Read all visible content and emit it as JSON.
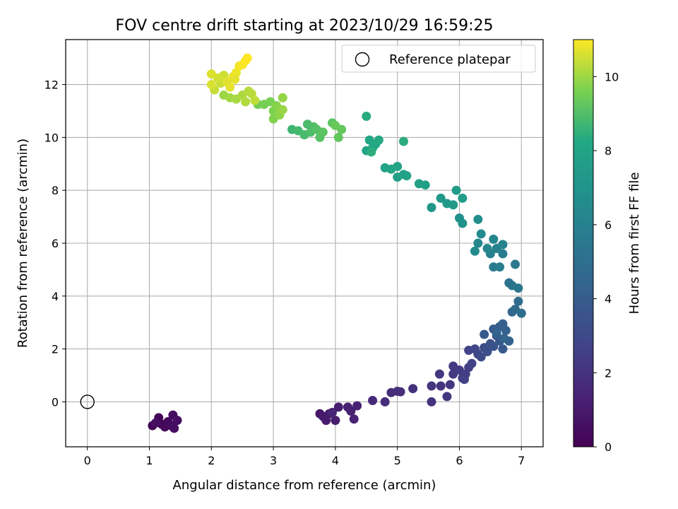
{
  "chart_data": {
    "type": "scatter",
    "title": "FOV centre drift starting at 2023/10/29 16:59:25",
    "xlabel": "Angular distance from reference (arcmin)",
    "ylabel": "Rotation from reference (arcmin)",
    "colorbar_label": "Hours from first FF file",
    "xlim": [
      -0.35,
      7.35
    ],
    "ylim": [
      -1.7,
      13.7
    ],
    "clim": [
      0,
      11
    ],
    "x_ticks": [
      0,
      1,
      2,
      3,
      4,
      5,
      6,
      7
    ],
    "y_ticks": [
      0,
      2,
      4,
      6,
      8,
      10,
      12
    ],
    "colorbar_ticks": [
      0,
      2,
      4,
      6,
      8,
      10
    ],
    "grid": true,
    "legend": {
      "placement": "top-right",
      "entries": [
        "Reference platepar"
      ]
    },
    "reference_point": {
      "x": 0,
      "y": 0,
      "marker": "open-circle"
    },
    "colormap": "viridis",
    "points": [
      {
        "x": 1.05,
        "y": -0.9,
        "t": 0.1
      },
      {
        "x": 1.15,
        "y": -0.6,
        "t": 0.2
      },
      {
        "x": 1.2,
        "y": -0.85,
        "t": 0.25
      },
      {
        "x": 1.25,
        "y": -0.95,
        "t": 0.3
      },
      {
        "x": 1.3,
        "y": -0.75,
        "t": 0.35
      },
      {
        "x": 1.35,
        "y": -0.9,
        "t": 0.4
      },
      {
        "x": 1.38,
        "y": -0.5,
        "t": 0.45
      },
      {
        "x": 1.4,
        "y": -1.0,
        "t": 0.5
      },
      {
        "x": 1.45,
        "y": -0.7,
        "t": 0.55
      },
      {
        "x": 1.1,
        "y": -0.8,
        "t": 0.6
      },
      {
        "x": 3.75,
        "y": -0.45,
        "t": 0.9
      },
      {
        "x": 3.8,
        "y": -0.55,
        "t": 0.95
      },
      {
        "x": 3.85,
        "y": -0.7,
        "t": 1.0
      },
      {
        "x": 3.9,
        "y": -0.45,
        "t": 1.05
      },
      {
        "x": 4.0,
        "y": -0.7,
        "t": 1.1
      },
      {
        "x": 4.05,
        "y": -0.2,
        "t": 1.15
      },
      {
        "x": 4.2,
        "y": -0.2,
        "t": 1.2
      },
      {
        "x": 4.25,
        "y": -0.35,
        "t": 1.25
      },
      {
        "x": 4.3,
        "y": -0.65,
        "t": 1.3
      },
      {
        "x": 4.35,
        "y": -0.15,
        "t": 1.35
      },
      {
        "x": 3.95,
        "y": -0.4,
        "t": 1.4
      },
      {
        "x": 4.6,
        "y": 0.05,
        "t": 1.6
      },
      {
        "x": 4.8,
        "y": 0.0,
        "t": 1.7
      },
      {
        "x": 4.9,
        "y": 0.35,
        "t": 1.75
      },
      {
        "x": 5.0,
        "y": 0.4,
        "t": 1.8
      },
      {
        "x": 5.05,
        "y": 0.38,
        "t": 1.85
      },
      {
        "x": 5.25,
        "y": 0.5,
        "t": 1.9
      },
      {
        "x": 5.55,
        "y": 0.0,
        "t": 2.0
      },
      {
        "x": 5.55,
        "y": 0.6,
        "t": 2.05
      },
      {
        "x": 5.7,
        "y": 0.6,
        "t": 2.1
      },
      {
        "x": 5.68,
        "y": 1.05,
        "t": 2.15
      },
      {
        "x": 5.8,
        "y": 0.2,
        "t": 2.2
      },
      {
        "x": 5.85,
        "y": 0.65,
        "t": 2.25
      },
      {
        "x": 5.9,
        "y": 1.05,
        "t": 2.3
      },
      {
        "x": 5.9,
        "y": 1.35,
        "t": 2.35
      },
      {
        "x": 6.0,
        "y": 1.2,
        "t": 2.4
      },
      {
        "x": 6.05,
        "y": 0.9,
        "t": 2.45
      },
      {
        "x": 6.1,
        "y": 1.05,
        "t": 2.5
      },
      {
        "x": 6.15,
        "y": 1.3,
        "t": 2.55
      },
      {
        "x": 6.08,
        "y": 0.85,
        "t": 2.6
      },
      {
        "x": 6.2,
        "y": 1.45,
        "t": 2.7
      },
      {
        "x": 6.15,
        "y": 1.95,
        "t": 2.8
      },
      {
        "x": 6.25,
        "y": 2.0,
        "t": 2.9
      },
      {
        "x": 6.3,
        "y": 1.8,
        "t": 3.0
      },
      {
        "x": 6.35,
        "y": 1.7,
        "t": 3.1
      },
      {
        "x": 6.4,
        "y": 2.05,
        "t": 3.2
      },
      {
        "x": 6.45,
        "y": 1.9,
        "t": 3.3
      },
      {
        "x": 6.5,
        "y": 2.2,
        "t": 3.4
      },
      {
        "x": 6.55,
        "y": 2.1,
        "t": 3.5
      },
      {
        "x": 6.6,
        "y": 2.5,
        "t": 3.6
      },
      {
        "x": 6.65,
        "y": 2.3,
        "t": 3.7
      },
      {
        "x": 6.7,
        "y": 2.0,
        "t": 3.8
      },
      {
        "x": 6.4,
        "y": 2.55,
        "t": 3.85
      },
      {
        "x": 6.55,
        "y": 2.75,
        "t": 3.9
      },
      {
        "x": 6.65,
        "y": 2.85,
        "t": 4.0
      },
      {
        "x": 6.7,
        "y": 2.95,
        "t": 4.1
      },
      {
        "x": 6.75,
        "y": 2.7,
        "t": 4.2
      },
      {
        "x": 6.8,
        "y": 2.3,
        "t": 4.3
      },
      {
        "x": 6.6,
        "y": 2.6,
        "t": 4.35
      },
      {
        "x": 6.72,
        "y": 2.4,
        "t": 4.4
      },
      {
        "x": 6.85,
        "y": 3.4,
        "t": 4.7
      },
      {
        "x": 6.9,
        "y": 3.5,
        "t": 4.8
      },
      {
        "x": 6.95,
        "y": 3.8,
        "t": 4.9
      },
      {
        "x": 7.0,
        "y": 3.35,
        "t": 5.0
      },
      {
        "x": 6.8,
        "y": 4.5,
        "t": 5.2
      },
      {
        "x": 6.85,
        "y": 4.4,
        "t": 5.3
      },
      {
        "x": 6.95,
        "y": 4.3,
        "t": 5.4
      },
      {
        "x": 6.9,
        "y": 5.2,
        "t": 5.5
      },
      {
        "x": 6.55,
        "y": 5.1,
        "t": 5.6
      },
      {
        "x": 6.65,
        "y": 5.1,
        "t": 5.7
      },
      {
        "x": 6.7,
        "y": 5.6,
        "t": 5.8
      },
      {
        "x": 6.5,
        "y": 5.6,
        "t": 5.9
      },
      {
        "x": 6.6,
        "y": 5.8,
        "t": 6.0
      },
      {
        "x": 6.7,
        "y": 5.95,
        "t": 6.1
      },
      {
        "x": 6.55,
        "y": 6.15,
        "t": 6.2
      },
      {
        "x": 6.45,
        "y": 5.8,
        "t": 6.3
      },
      {
        "x": 6.3,
        "y": 6.0,
        "t": 6.4
      },
      {
        "x": 6.35,
        "y": 6.35,
        "t": 6.5
      },
      {
        "x": 6.25,
        "y": 5.7,
        "t": 6.55
      },
      {
        "x": 6.3,
        "y": 6.9,
        "t": 6.7
      },
      {
        "x": 6.0,
        "y": 6.95,
        "t": 6.9
      },
      {
        "x": 6.05,
        "y": 6.75,
        "t": 7.0
      },
      {
        "x": 5.55,
        "y": 7.35,
        "t": 7.2
      },
      {
        "x": 5.7,
        "y": 7.7,
        "t": 7.3
      },
      {
        "x": 5.8,
        "y": 7.5,
        "t": 7.4
      },
      {
        "x": 5.9,
        "y": 7.45,
        "t": 7.5
      },
      {
        "x": 5.95,
        "y": 8.0,
        "t": 7.55
      },
      {
        "x": 6.05,
        "y": 7.7,
        "t": 7.6
      },
      {
        "x": 5.35,
        "y": 8.25,
        "t": 7.7
      },
      {
        "x": 5.45,
        "y": 8.2,
        "t": 7.75
      },
      {
        "x": 5.0,
        "y": 8.5,
        "t": 7.8
      },
      {
        "x": 5.1,
        "y": 8.6,
        "t": 7.85
      },
      {
        "x": 5.15,
        "y": 8.55,
        "t": 7.9
      },
      {
        "x": 5.0,
        "y": 8.9,
        "t": 7.95
      },
      {
        "x": 4.8,
        "y": 8.85,
        "t": 8.0
      },
      {
        "x": 4.9,
        "y": 8.8,
        "t": 8.05
      },
      {
        "x": 4.5,
        "y": 9.5,
        "t": 8.1
      },
      {
        "x": 4.55,
        "y": 9.9,
        "t": 8.15
      },
      {
        "x": 4.6,
        "y": 9.6,
        "t": 8.2
      },
      {
        "x": 4.65,
        "y": 9.75,
        "t": 8.25
      },
      {
        "x": 4.7,
        "y": 9.9,
        "t": 8.3
      },
      {
        "x": 4.5,
        "y": 10.8,
        "t": 8.35
      },
      {
        "x": 5.1,
        "y": 9.85,
        "t": 8.4
      },
      {
        "x": 4.58,
        "y": 9.45,
        "t": 8.45
      },
      {
        "x": 3.3,
        "y": 10.3,
        "t": 8.7
      },
      {
        "x": 3.4,
        "y": 10.25,
        "t": 8.8
      },
      {
        "x": 3.5,
        "y": 10.1,
        "t": 8.85
      },
      {
        "x": 3.55,
        "y": 10.5,
        "t": 8.9
      },
      {
        "x": 3.6,
        "y": 10.2,
        "t": 8.95
      },
      {
        "x": 3.65,
        "y": 10.4,
        "t": 9.0
      },
      {
        "x": 3.7,
        "y": 10.3,
        "t": 9.05
      },
      {
        "x": 3.75,
        "y": 10.0,
        "t": 9.1
      },
      {
        "x": 3.8,
        "y": 10.2,
        "t": 9.15
      },
      {
        "x": 3.95,
        "y": 10.55,
        "t": 9.2
      },
      {
        "x": 4.05,
        "y": 10.0,
        "t": 9.25
      },
      {
        "x": 4.1,
        "y": 10.3,
        "t": 9.3
      },
      {
        "x": 4.0,
        "y": 10.45,
        "t": 9.35
      },
      {
        "x": 2.75,
        "y": 11.25,
        "t": 9.5
      },
      {
        "x": 2.85,
        "y": 11.25,
        "t": 9.55
      },
      {
        "x": 2.95,
        "y": 11.35,
        "t": 9.6
      },
      {
        "x": 3.0,
        "y": 11.0,
        "t": 9.65
      },
      {
        "x": 3.0,
        "y": 10.7,
        "t": 9.7
      },
      {
        "x": 3.05,
        "y": 11.2,
        "t": 9.75
      },
      {
        "x": 3.1,
        "y": 11.0,
        "t": 9.8
      },
      {
        "x": 3.1,
        "y": 10.85,
        "t": 9.85
      },
      {
        "x": 3.15,
        "y": 11.5,
        "t": 9.9
      },
      {
        "x": 3.15,
        "y": 11.05,
        "t": 9.95
      },
      {
        "x": 2.2,
        "y": 11.6,
        "t": 10.0
      },
      {
        "x": 2.3,
        "y": 11.5,
        "t": 10.05
      },
      {
        "x": 2.4,
        "y": 11.45,
        "t": 10.1
      },
      {
        "x": 2.5,
        "y": 11.6,
        "t": 10.15
      },
      {
        "x": 2.55,
        "y": 11.35,
        "t": 10.2
      },
      {
        "x": 2.6,
        "y": 11.75,
        "t": 10.25
      },
      {
        "x": 2.65,
        "y": 11.65,
        "t": 10.3
      },
      {
        "x": 2.7,
        "y": 11.4,
        "t": 10.35
      },
      {
        "x": 2.05,
        "y": 11.8,
        "t": 10.4
      },
      {
        "x": 2.15,
        "y": 12.05,
        "t": 10.45
      },
      {
        "x": 2.2,
        "y": 12.35,
        "t": 10.5
      },
      {
        "x": 2.1,
        "y": 12.25,
        "t": 10.55
      },
      {
        "x": 2.0,
        "y": 12.0,
        "t": 10.6
      },
      {
        "x": 2.0,
        "y": 12.4,
        "t": 10.65
      },
      {
        "x": 2.25,
        "y": 12.1,
        "t": 10.7
      },
      {
        "x": 2.3,
        "y": 11.9,
        "t": 10.75
      },
      {
        "x": 2.35,
        "y": 12.3,
        "t": 10.8
      },
      {
        "x": 2.4,
        "y": 12.45,
        "t": 10.85
      },
      {
        "x": 2.45,
        "y": 12.7,
        "t": 10.9
      },
      {
        "x": 2.5,
        "y": 12.75,
        "t": 10.95
      },
      {
        "x": 2.55,
        "y": 12.9,
        "t": 11.0
      },
      {
        "x": 2.58,
        "y": 13.0,
        "t": 11.05
      },
      {
        "x": 2.38,
        "y": 12.2,
        "t": 10.75
      }
    ]
  }
}
